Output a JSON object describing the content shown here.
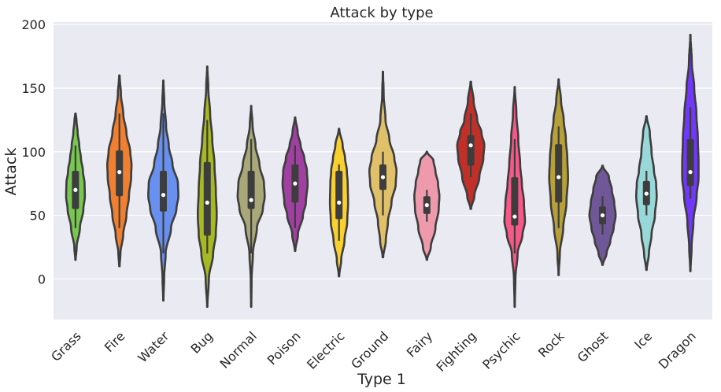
{
  "chart_data": {
    "type": "violin",
    "title": "Attack by type",
    "xlabel": "Type 1",
    "ylabel": "Attack",
    "ylim": [
      -32,
      202
    ],
    "yticks": [
      0,
      50,
      100,
      150,
      200
    ],
    "grid": true,
    "background_color": "#eaeaf2",
    "grid_color": "#ffffff",
    "outline_color": "#3d3d3d",
    "categories": [
      {
        "label": "Grass",
        "color": "#78c850",
        "min": 15,
        "max": 130,
        "q1": 55,
        "median": 70,
        "q3": 85,
        "whisker_low": 40,
        "whisker_high": 105,
        "width": 0.45,
        "profile": [
          [
            15,
            0.02
          ],
          [
            25,
            0.12
          ],
          [
            40,
            0.45
          ],
          [
            55,
            0.8
          ],
          [
            65,
            0.95
          ],
          [
            75,
            0.92
          ],
          [
            85,
            0.75
          ],
          [
            95,
            0.55
          ],
          [
            105,
            0.38
          ],
          [
            115,
            0.22
          ],
          [
            125,
            0.1
          ],
          [
            130,
            0.02
          ]
        ]
      },
      {
        "label": "Fire",
        "color": "#f08030",
        "min": 10,
        "max": 160,
        "q1": 65,
        "median": 84,
        "q3": 101,
        "whisker_low": 40,
        "whisker_high": 130,
        "width": 0.58,
        "profile": [
          [
            10,
            0.02
          ],
          [
            20,
            0.08
          ],
          [
            35,
            0.3
          ],
          [
            50,
            0.55
          ],
          [
            65,
            0.75
          ],
          [
            80,
            0.92
          ],
          [
            90,
            0.95
          ],
          [
            100,
            0.85
          ],
          [
            115,
            0.55
          ],
          [
            130,
            0.3
          ],
          [
            145,
            0.12
          ],
          [
            160,
            0.02
          ]
        ]
      },
      {
        "label": "Water",
        "color": "#6890f0",
        "min": -17,
        "max": 156,
        "q1": 53,
        "median": 66,
        "q3": 85,
        "whisker_low": 20,
        "whisker_high": 130,
        "width": 0.7,
        "profile": [
          [
            -17,
            0.01
          ],
          [
            0,
            0.05
          ],
          [
            20,
            0.15
          ],
          [
            40,
            0.5
          ],
          [
            55,
            0.85
          ],
          [
            65,
            0.98
          ],
          [
            75,
            0.95
          ],
          [
            90,
            0.6
          ],
          [
            105,
            0.35
          ],
          [
            120,
            0.18
          ],
          [
            140,
            0.06
          ],
          [
            156,
            0.01
          ]
        ]
      },
      {
        "label": "Bug",
        "color": "#a8b820",
        "min": -22,
        "max": 167,
        "q1": 34,
        "median": 60,
        "q3": 92,
        "whisker_low": 20,
        "whisker_high": 125,
        "width": 0.6,
        "profile": [
          [
            -22,
            0.01
          ],
          [
            0,
            0.12
          ],
          [
            20,
            0.45
          ],
          [
            35,
            0.65
          ],
          [
            50,
            0.72
          ],
          [
            70,
            0.65
          ],
          [
            90,
            0.55
          ],
          [
            110,
            0.38
          ],
          [
            130,
            0.22
          ],
          [
            150,
            0.08
          ],
          [
            167,
            0.01
          ]
        ]
      },
      {
        "label": "Normal",
        "color": "#a8a878",
        "min": -22,
        "max": 136,
        "q1": 55,
        "median": 62,
        "q3": 85,
        "whisker_low": 20,
        "whisker_high": 110,
        "width": 0.65,
        "profile": [
          [
            -22,
            0.01
          ],
          [
            0,
            0.03
          ],
          [
            20,
            0.12
          ],
          [
            40,
            0.4
          ],
          [
            55,
            0.82
          ],
          [
            65,
            0.95
          ],
          [
            75,
            0.9
          ],
          [
            90,
            0.58
          ],
          [
            105,
            0.3
          ],
          [
            120,
            0.1
          ],
          [
            136,
            0.01
          ]
        ]
      },
      {
        "label": "Poison",
        "color": "#a040a0",
        "min": 22,
        "max": 127,
        "q1": 60,
        "median": 75,
        "q3": 90,
        "whisker_low": 40,
        "whisker_high": 105,
        "width": 0.6,
        "profile": [
          [
            22,
            0.02
          ],
          [
            35,
            0.22
          ],
          [
            50,
            0.6
          ],
          [
            60,
            0.82
          ],
          [
            75,
            0.95
          ],
          [
            85,
            0.9
          ],
          [
            95,
            0.7
          ],
          [
            105,
            0.42
          ],
          [
            115,
            0.2
          ],
          [
            127,
            0.02
          ]
        ]
      },
      {
        "label": "Electric",
        "color": "#f8d030",
        "min": 2,
        "max": 118,
        "q1": 47,
        "median": 60,
        "q3": 85,
        "whisker_low": 30,
        "whisker_high": 90,
        "width": 0.55,
        "profile": [
          [
            2,
            0.02
          ],
          [
            15,
            0.18
          ],
          [
            30,
            0.45
          ],
          [
            45,
            0.68
          ],
          [
            60,
            0.75
          ],
          [
            75,
            0.72
          ],
          [
            85,
            0.65
          ],
          [
            95,
            0.5
          ],
          [
            105,
            0.3
          ],
          [
            118,
            0.02
          ]
        ]
      },
      {
        "label": "Ground",
        "color": "#e0c068",
        "min": 17,
        "max": 163,
        "q1": 70,
        "median": 80,
        "q3": 90,
        "whisker_low": 50,
        "whisker_high": 100,
        "width": 0.65,
        "profile": [
          [
            17,
            0.02
          ],
          [
            30,
            0.2
          ],
          [
            45,
            0.35
          ],
          [
            60,
            0.6
          ],
          [
            75,
            0.9
          ],
          [
            85,
            0.95
          ],
          [
            95,
            0.8
          ],
          [
            110,
            0.45
          ],
          [
            125,
            0.18
          ],
          [
            145,
            0.05
          ],
          [
            163,
            0.01
          ]
        ]
      },
      {
        "label": "Fairy",
        "color": "#ee99ac",
        "min": 15,
        "max": 100,
        "q1": 51,
        "median": 58,
        "q3": 65,
        "whisker_low": 45,
        "whisker_high": 70,
        "width": 0.6,
        "profile": [
          [
            15,
            0.02
          ],
          [
            25,
            0.3
          ],
          [
            40,
            0.65
          ],
          [
            55,
            0.9
          ],
          [
            65,
            0.95
          ],
          [
            75,
            0.85
          ],
          [
            85,
            0.65
          ],
          [
            93,
            0.5
          ],
          [
            100,
            0.02
          ]
        ]
      },
      {
        "label": "Fighting",
        "color": "#c03028",
        "min": 55,
        "max": 155,
        "q1": 89,
        "median": 105,
        "q3": 113,
        "whisker_low": 80,
        "whisker_high": 130,
        "width": 0.65,
        "profile": [
          [
            55,
            0.02
          ],
          [
            65,
            0.25
          ],
          [
            80,
            0.6
          ],
          [
            95,
            0.88
          ],
          [
            105,
            0.95
          ],
          [
            115,
            0.75
          ],
          [
            125,
            0.45
          ],
          [
            140,
            0.2
          ],
          [
            155,
            0.02
          ]
        ]
      },
      {
        "label": "Psychic",
        "color": "#f85888",
        "min": -22,
        "max": 151,
        "q1": 42,
        "median": 49,
        "q3": 80,
        "whisker_low": 20,
        "whisker_high": 110,
        "width": 0.65,
        "profile": [
          [
            -22,
            0.01
          ],
          [
            0,
            0.05
          ],
          [
            20,
            0.2
          ],
          [
            35,
            0.55
          ],
          [
            45,
            0.72
          ],
          [
            60,
            0.65
          ],
          [
            75,
            0.5
          ],
          [
            90,
            0.38
          ],
          [
            110,
            0.25
          ],
          [
            130,
            0.12
          ],
          [
            151,
            0.01
          ]
        ]
      },
      {
        "label": "Rock",
        "color": "#b8a038",
        "min": 3,
        "max": 157,
        "q1": 60,
        "median": 80,
        "q3": 106,
        "whisker_low": 40,
        "whisker_high": 120,
        "width": 0.55,
        "profile": [
          [
            3,
            0.01
          ],
          [
            20,
            0.1
          ],
          [
            40,
            0.38
          ],
          [
            60,
            0.65
          ],
          [
            80,
            0.78
          ],
          [
            95,
            0.72
          ],
          [
            110,
            0.6
          ],
          [
            125,
            0.42
          ],
          [
            140,
            0.2
          ],
          [
            157,
            0.01
          ]
        ]
      },
      {
        "label": "Ghost",
        "color": "#705898",
        "min": 11,
        "max": 89,
        "q1": 43,
        "median": 50,
        "q3": 57,
        "whisker_low": 35,
        "whisker_high": 65,
        "width": 0.65,
        "profile": [
          [
            11,
            0.02
          ],
          [
            20,
            0.28
          ],
          [
            30,
            0.55
          ],
          [
            40,
            0.78
          ],
          [
            50,
            0.92
          ],
          [
            60,
            0.82
          ],
          [
            70,
            0.65
          ],
          [
            80,
            0.45
          ],
          [
            89,
            0.02
          ]
        ]
      },
      {
        "label": "Ice",
        "color": "#98d8d8",
        "min": 7,
        "max": 128,
        "q1": 58,
        "median": 67,
        "q3": 77,
        "whisker_low": 50,
        "whisker_high": 85,
        "width": 0.55,
        "profile": [
          [
            7,
            0.02
          ],
          [
            20,
            0.2
          ],
          [
            35,
            0.42
          ],
          [
            50,
            0.7
          ],
          [
            65,
            0.85
          ],
          [
            75,
            0.8
          ],
          [
            85,
            0.62
          ],
          [
            100,
            0.42
          ],
          [
            115,
            0.28
          ],
          [
            128,
            0.02
          ]
        ]
      },
      {
        "label": "Dragon",
        "color": "#7038f8",
        "min": 6,
        "max": 192,
        "q1": 73,
        "median": 84,
        "q3": 110,
        "whisker_low": 63,
        "whisker_high": 135,
        "width": 0.55,
        "profile": [
          [
            6,
            0.01
          ],
          [
            25,
            0.1
          ],
          [
            45,
            0.25
          ],
          [
            65,
            0.52
          ],
          [
            80,
            0.68
          ],
          [
            90,
            0.68
          ],
          [
            110,
            0.62
          ],
          [
            130,
            0.5
          ],
          [
            150,
            0.32
          ],
          [
            170,
            0.12
          ],
          [
            192,
            0.01
          ]
        ]
      }
    ]
  }
}
